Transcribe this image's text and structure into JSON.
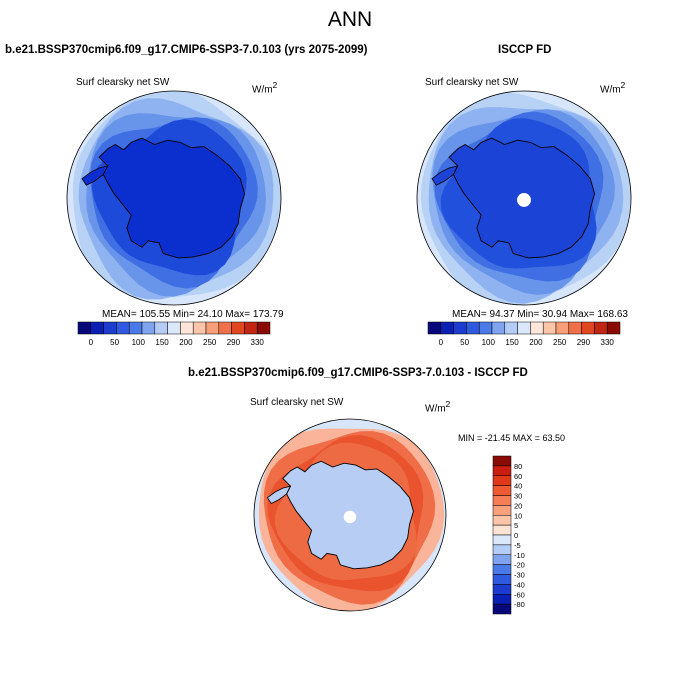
{
  "page": {
    "title": "ANN"
  },
  "chart_data": [
    {
      "type": "heatmap",
      "projection": "south-polar-stereographic",
      "title": "b.e21.BSSP370cmip6.f09_g17.CMIP6-SSP3-7.0.103 (yrs 2075-2099)",
      "field_label": "Surf clearsky net SW",
      "units": "W/m",
      "units_sup": "2",
      "stats": {
        "mean": "105.55",
        "min": "24.10",
        "max": "173.79"
      },
      "stats_text": "MEAN= 105.55  Min=  24.10  Max= 173.79",
      "colorbar": {
        "orientation": "horizontal",
        "levels": [
          "0",
          "50",
          "100",
          "150",
          "200",
          "250",
          "290",
          "330"
        ],
        "colors": [
          "#08087a",
          "#0a1fb4",
          "#1c3ccf",
          "#2f5ae0",
          "#4a7ae8",
          "#7fa3ef",
          "#b3cdf6",
          "#dbe8fb",
          "#ffe6d8",
          "#fcc4a8",
          "#f89e79",
          "#f0704a",
          "#e0471f",
          "#c02611",
          "#8a0a06"
        ]
      },
      "ring_colors": [
        "#d7e6fb",
        "#b8d2f6",
        "#8fb3f0",
        "#6894ea",
        "#3f6fe3",
        "#1d4ad9"
      ],
      "interior_color": "#0b2fcf",
      "pole_hole": false
    },
    {
      "type": "heatmap",
      "projection": "south-polar-stereographic",
      "title": "ISCCP FD",
      "field_label": "Surf clearsky net SW",
      "units": "W/m",
      "units_sup": "2",
      "stats": {
        "mean": "94.37",
        "min": "30.94",
        "max": "168.63"
      },
      "stats_text": "MEAN=  94.37  Min=  30.94  Max= 168.63",
      "colorbar": {
        "orientation": "horizontal",
        "levels": [
          "0",
          "50",
          "100",
          "150",
          "200",
          "250",
          "290",
          "330"
        ],
        "colors": [
          "#08087a",
          "#0a1fb4",
          "#1c3ccf",
          "#2f5ae0",
          "#4a7ae8",
          "#7fa3ef",
          "#b3cdf6",
          "#dbe8fb",
          "#ffe6d8",
          "#fcc4a8",
          "#f89e79",
          "#f0704a",
          "#e0471f",
          "#c02611",
          "#8a0a06"
        ]
      },
      "ring_colors": [
        "#d7e6fb",
        "#b8d2f6",
        "#8fb3f0",
        "#6894ea",
        "#3f6fe3",
        "#2150dc"
      ],
      "interior_color": "#1b44d6",
      "pole_hole": true
    },
    {
      "type": "heatmap",
      "projection": "south-polar-stereographic",
      "title": "b.e21.BSSP370cmip6.f09_g17.CMIP6-SSP3-7.0.103 - ISCCP FD",
      "field_label": "Surf clearsky net SW",
      "units": "W/m",
      "units_sup": "2",
      "stats": {
        "min": "-21.45",
        "max": "63.50"
      },
      "stats_text": "MIN = -21.45 MAX =  63.50",
      "colorbar": {
        "orientation": "vertical",
        "levels": [
          "80",
          "60",
          "40",
          "30",
          "20",
          "10",
          "5",
          "0",
          "-5",
          "-10",
          "-20",
          "-30",
          "-40",
          "-60",
          "-80"
        ],
        "colors": [
          "#8a0a06",
          "#c81d0f",
          "#e0391a",
          "#ef5a33",
          "#f67d55",
          "#f9a07c",
          "#fcc4a8",
          "#fde3d3",
          "#dbe8fb",
          "#b3cdf6",
          "#7fa3ef",
          "#4a7ae8",
          "#2f5ae0",
          "#1c3ccf",
          "#0a1fb4",
          "#08087a"
        ]
      },
      "ring_colors": [
        "#d7e6fb",
        "#f9b49a",
        "#ef6e47",
        "#e9532e",
        "#ed6a43"
      ],
      "interior_color": "#b7cdf3",
      "pole_hole": true
    }
  ]
}
